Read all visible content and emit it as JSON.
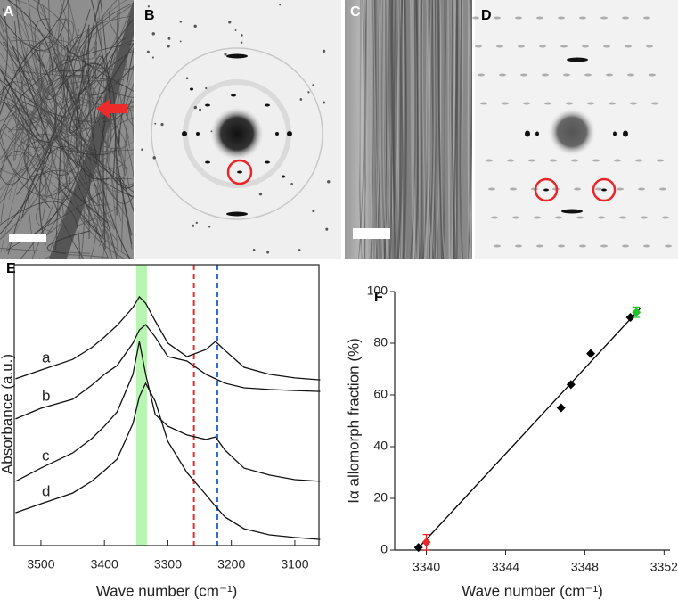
{
  "panels": [
    {
      "label": "A"
    },
    {
      "label": "B"
    },
    {
      "label": "C"
    },
    {
      "label": "D"
    }
  ],
  "chart_data": [
    {
      "label": "E",
      "type": "line",
      "xlabel": "Wave number (cm⁻¹)",
      "ylabel": "Absorbance (a.u.)",
      "x": [
        3540,
        3500,
        3450,
        3420,
        3400,
        3380,
        3355,
        3345,
        3335,
        3320,
        3300,
        3270,
        3240,
        3225,
        3210,
        3180,
        3140,
        3100,
        3060
      ],
      "xlim": [
        3542,
        3062
      ],
      "xticks": [
        3500,
        3400,
        3300,
        3200,
        3100
      ],
      "ylim": [
        0,
        100
      ],
      "series": [
        {
          "name": "a",
          "color": "#111111",
          "values": [
            59.4,
            62.5,
            66.3,
            70.5,
            74.3,
            78.4,
            84.8,
            88.6,
            86.3,
            80,
            72.1,
            67.3,
            69.8,
            72.7,
            69.5,
            63.5,
            61,
            59.7,
            59
          ]
        },
        {
          "name": "b",
          "color": "#111111",
          "values": [
            45.1,
            48.9,
            52.1,
            57.1,
            61,
            64.1,
            72.1,
            76.8,
            78.7,
            74.3,
            67.3,
            65.7,
            61,
            59.4,
            57.8,
            56.2,
            55.6,
            55.2,
            54.9
          ]
        },
        {
          "name": "c",
          "color": "#111111",
          "values": [
            22.9,
            27.6,
            33,
            38.1,
            42.5,
            47.6,
            61,
            72.7,
            61,
            46.7,
            42.5,
            39.4,
            37.8,
            38.7,
            34,
            27.6,
            25.1,
            23.5,
            22.9
          ]
        },
        {
          "name": "d",
          "color": "#111111",
          "values": [
            11.7,
            14.9,
            18.7,
            22.9,
            26.7,
            30.8,
            43.5,
            53,
            57.8,
            51.4,
            37.1,
            26,
            18.1,
            14,
            10.2,
            6,
            3.8,
            2.9,
            2.2
          ]
        }
      ],
      "band": {
        "from": 3350,
        "to": 3333,
        "color": "#b8f5b2"
      },
      "vlines": [
        {
          "x": 3259,
          "color": "#e0302a"
        },
        {
          "x": 3222,
          "color": "#2d6fd1"
        }
      ]
    },
    {
      "label": "F",
      "type": "scatter",
      "xlabel": "Wave number (cm⁻¹)",
      "ylabel": "Iα allomorph fraction (%)",
      "xlim": [
        3338.4,
        3352.3
      ],
      "xticks": [
        3340,
        3344,
        3348,
        3352
      ],
      "ylim": [
        0,
        100
      ],
      "yticks": [
        0,
        20,
        40,
        60,
        80,
        100
      ],
      "series": [
        {
          "color": "#000000",
          "marker": "diamond",
          "x": [
            3339.6,
            3346.8,
            3347.3,
            3348.3,
            3350.3
          ],
          "values": [
            1,
            55,
            64,
            76,
            90
          ]
        },
        {
          "color": "#e8262a",
          "marker": "diamond",
          "x": [
            3340
          ],
          "values": [
            3
          ],
          "errors": [
            3
          ]
        },
        {
          "color": "#22c32a",
          "marker": "diamond",
          "x": [
            3350.6
          ],
          "values": [
            92
          ],
          "errors": [
            2
          ]
        }
      ],
      "fit": {
        "color": "#000000",
        "x": [
          3339.5,
          3350.8
        ],
        "values": [
          0,
          93.5
        ]
      }
    }
  ]
}
